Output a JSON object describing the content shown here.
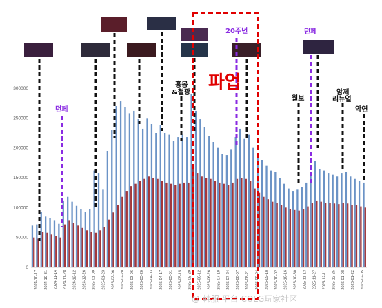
{
  "chart_data": {
    "type": "bar",
    "y_ticks": [
      0,
      50000,
      100000,
      150000,
      200000,
      250000,
      300000
    ],
    "y_tick_labels": [
      "0",
      "50000",
      "100000",
      "150000",
      "200000",
      "250000",
      "300000"
    ],
    "ylim": [
      0,
      300000
    ],
    "x_tick_labels": [
      "2024-10-17",
      "2024-10-31",
      "2024-11-14",
      "2024-11-28",
      "2024-12-12",
      "2024-12-26",
      "2025-01-09",
      "2025-01-23",
      "2025-02-06",
      "2025-02-20",
      "2025-03-06",
      "2025-03-20",
      "2025-04-03",
      "2025-04-17",
      "2025-05-01",
      "2025-05-15",
      "2025-05-29",
      "2025-06-12",
      "2025-06-26",
      "2025-07-10",
      "2025-07-24",
      "2025-08-07",
      "2025-08-21",
      "2025-09-04",
      "2025-09-18",
      "2025-10-02",
      "2025-10-16",
      "2025-10-30",
      "2025-11-13",
      "2025-11-27",
      "2025-12-11",
      "2025-12-25",
      "2026-01-08",
      "2026-01-22",
      "2026-02-05"
    ],
    "series": [
      {
        "color": "#6b93c6",
        "values": [
          70000,
          72000,
          93000,
          85000,
          82000,
          78000,
          73000,
          112000,
          118000,
          110000,
          103000,
          97000,
          93000,
          97000,
          162000,
          158000,
          130000,
          195000,
          230000,
          270000,
          278000,
          268000,
          258000,
          262000,
          248000,
          232000,
          250000,
          240000,
          225000,
          238000,
          225000,
          222000,
          212000,
          218000,
          222000,
          218000,
          290000,
          262000,
          248000,
          235000,
          220000,
          210000,
          200000,
          190000,
          188000,
          198000,
          218000,
          232000,
          215000,
          222000,
          200000,
          190000,
          180000,
          170000,
          162000,
          160000,
          150000,
          140000,
          132000,
          128000,
          130000,
          135000,
          142000,
          160000,
          178000,
          165000,
          162000,
          158000,
          155000,
          152000,
          158000,
          160000,
          152000,
          148000,
          145000,
          142000
        ]
      },
      {
        "color": "#a3373b",
        "values": [
          50000,
          48000,
          60000,
          58000,
          55000,
          52000,
          50000,
          72000,
          78000,
          74000,
          70000,
          66000,
          62000,
          60000,
          58000,
          62000,
          68000,
          80000,
          92000,
          105000,
          118000,
          128000,
          136000,
          140000,
          145000,
          148000,
          152000,
          150000,
          148000,
          145000,
          142000,
          140000,
          138000,
          140000,
          142000,
          142000,
          165000,
          158000,
          152000,
          150000,
          148000,
          145000,
          142000,
          140000,
          138000,
          142000,
          148000,
          150000,
          148000,
          145000,
          132000,
          125000,
          118000,
          114000,
          110000,
          108000,
          104000,
          100000,
          98000,
          96000,
          95000,
          98000,
          102000,
          108000,
          112000,
          110000,
          108000,
          108000,
          107000,
          106000,
          108000,
          107000,
          105000,
          104000,
          102000,
          100000
        ]
      }
    ],
    "annotations": [
      {
        "text": "던페",
        "style": "purple"
      },
      {
        "text": "흥몽",
        "style": "black"
      },
      {
        "text": "&철광",
        "style": "black"
      },
      {
        "text": "파업",
        "style": "big-red"
      },
      {
        "text": "20주년",
        "style": "purple"
      },
      {
        "text": "월보",
        "style": "black"
      },
      {
        "text": "던페",
        "style": "purple"
      },
      {
        "text": "암제",
        "style": "black"
      },
      {
        "text": "리뉴얼",
        "style": "black"
      },
      {
        "text": "악연",
        "style": "black"
      }
    ],
    "watermark": "@ 韩服 平台 COLG玩家社区",
    "colors": {
      "blue": "#6b93c6",
      "red": "#a3373b",
      "purple_line": "#8a2be2",
      "black_line": "#111111",
      "highlight_box": "#e00000"
    }
  }
}
